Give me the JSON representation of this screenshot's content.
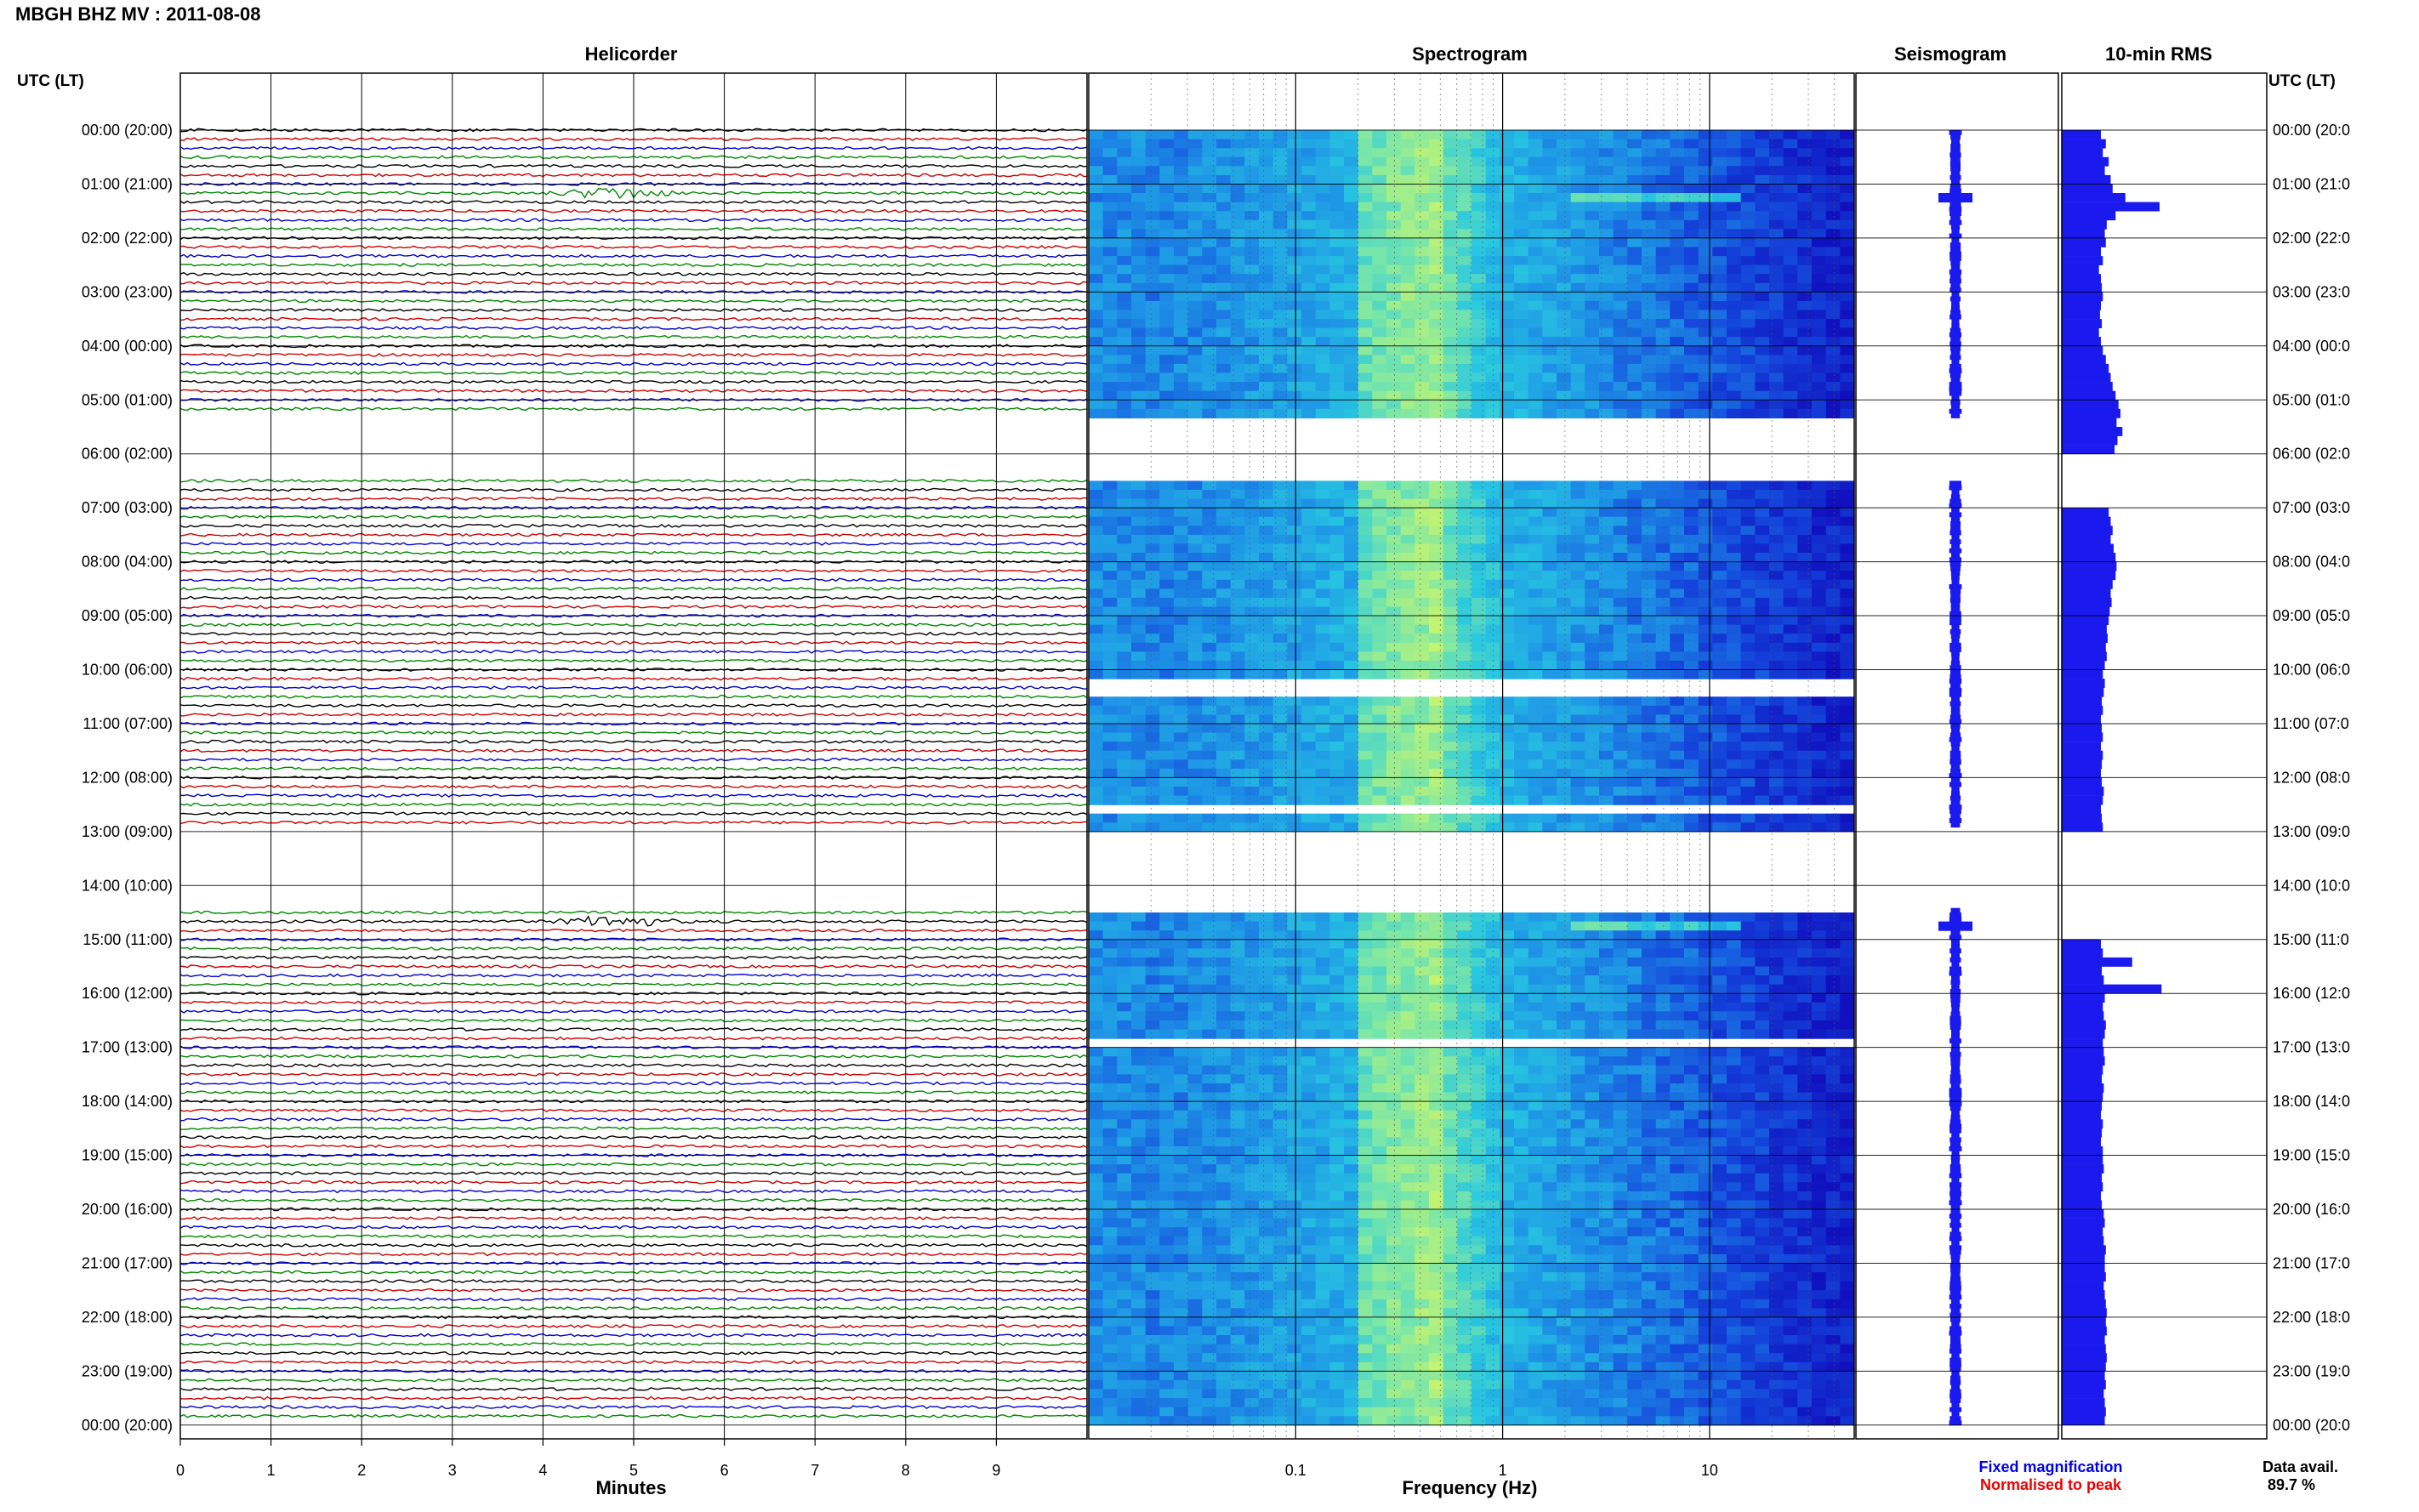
{
  "title": "MBGH BHZ MV : 2011-08-08",
  "panels": {
    "helicorder": "Helicorder",
    "spectrogram": "Spectrogram",
    "seismogram": "Seismogram",
    "rms": "10-min RMS"
  },
  "time_axis_label_left": "UTC (LT)",
  "time_axis_label_right": "UTC (LT)",
  "hour_labels": [
    "00:00 (20:00)",
    "01:00 (21:00)",
    "02:00 (22:00)",
    "03:00 (23:00)",
    "04:00 (00:00)",
    "05:00 (01:00)",
    "06:00 (02:00)",
    "07:00 (03:00)",
    "08:00 (04:00)",
    "09:00 (05:00)",
    "10:00 (06:00)",
    "11:00 (07:00)",
    "12:00 (08:00)",
    "13:00 (09:00)",
    "14:00 (10:00)",
    "15:00 (11:00)",
    "16:00 (12:00)",
    "17:00 (13:00)",
    "18:00 (14:00)",
    "19:00 (15:00)",
    "20:00 (16:00)",
    "21:00 (17:00)",
    "22:00 (18:00)",
    "23:00 (19:00)",
    "00:00 (20:00)"
  ],
  "hour_labels_right": [
    "00:00 (20:0",
    "01:00 (21:0",
    "02:00 (22:0",
    "03:00 (23:0",
    "04:00 (00:0",
    "05:00 (01:0",
    "06:00 (02:0",
    "07:00 (03:0",
    "08:00 (04:0",
    "09:00 (05:0",
    "10:00 (06:0",
    "11:00 (07:0",
    "12:00 (08:0",
    "13:00 (09:0",
    "14:00 (10:0",
    "15:00 (11:0",
    "16:00 (12:0",
    "17:00 (13:0",
    "18:00 (14:0",
    "19:00 (15:0",
    "20:00 (16:0",
    "21:00 (17:0",
    "22:00 (18:0",
    "23:00 (19:0",
    "00:00 (20:0"
  ],
  "minutes_axis": {
    "label": "Minutes",
    "ticks": [
      "0",
      "1",
      "2",
      "3",
      "4",
      "5",
      "6",
      "7",
      "8",
      "9"
    ],
    "range": [
      0,
      10
    ]
  },
  "frequency_axis": {
    "label": "Frequency (Hz)",
    "ticks": [
      "0.1",
      "1",
      "10"
    ],
    "scale": "log",
    "range": [
      0.01,
      50
    ]
  },
  "legend": {
    "fixed": "Fixed magnification",
    "normalised": "Normalised to peak",
    "fixed_color": "#0000ee",
    "normalised_color": "#ee0000"
  },
  "data_avail_label": "Data avail.",
  "data_avail_value": "89.7 %",
  "colors": {
    "trace_cycle": [
      "#000000",
      "#cc0000",
      "#0000cc",
      "#008800"
    ],
    "spectrogram_low": "#1010c0",
    "spectrogram_mid": "#20c0e0",
    "spectrogram_high": "#c0f060",
    "rms_bar": "#1a1aee",
    "seismogram": "#1a1aee"
  },
  "chart_data": {
    "type": "heatmap",
    "title": "MBGH BHZ MV : 2011-08-08",
    "data_gaps_utc_hours": [
      [
        5.3,
        6.5
      ],
      [
        12.9,
        14.4
      ]
    ],
    "spectrogram_gaps_utc_hours": [
      [
        5.1,
        5.2
      ],
      [
        10.2,
        10.4
      ],
      [
        12.5,
        12.6
      ],
      [
        16.8,
        16.9
      ]
    ],
    "events": [
      {
        "utc_hour": 1.2,
        "note": "high-frequency event ~5-10 Hz"
      },
      {
        "utc_hour": 14.7,
        "note": "large event near 5 minutes"
      }
    ],
    "rms_10min": {
      "hour_start": 0,
      "values": [
        0.4,
        0.45,
        0.42,
        0.48,
        0.44,
        0.5,
        0.52,
        0.65,
        1.0,
        0.55,
        0.46,
        0.44,
        0.45,
        0.4,
        0.42,
        0.38,
        0.4,
        0.41,
        0.42,
        0.4,
        0.39,
        0.41,
        0.38,
        0.4,
        0.42,
        0.45,
        0.48,
        0.5,
        0.52,
        0.55,
        0.58,
        0.6,
        0.56,
        0.62,
        0.57,
        0.54,
        null,
        null,
        null,
        null,
        null,
        null,
        0.48,
        0.5,
        0.52,
        0.5,
        0.53,
        0.55,
        0.56,
        0.55,
        0.52,
        0.5,
        0.51,
        0.49,
        0.48,
        0.46,
        0.47,
        0.45,
        0.46,
        0.44,
        0.42,
        0.44,
        0.43,
        0.41,
        0.42,
        0.4,
        0.41,
        0.42,
        0.4,
        0.42,
        0.41,
        0.4,
        0.41,
        0.43,
        0.42,
        0.4,
        0.41,
        0.42,
        null,
        null,
        null,
        null,
        null,
        null,
        null,
        null,
        null,
        null,
        null,
        null,
        0.4,
        0.42,
        0.72,
        0.41,
        0.43,
        1.02,
        0.44,
        0.42,
        0.43,
        0.45,
        0.44,
        0.42,
        0.43,
        0.44,
        0.42,
        0.41,
        0.43,
        0.42,
        0.41,
        0.4,
        0.42,
        0.41,
        0.4,
        0.42,
        0.42,
        0.43,
        0.41,
        0.42,
        0.4,
        0.41,
        0.43,
        0.44,
        0.42,
        0.43,
        0.45,
        0.44,
        0.44,
        0.45,
        0.43,
        0.44,
        0.45,
        0.46,
        0.45,
        0.46,
        0.44,
        0.45,
        0.46,
        0.45,
        0.44,
        0.45,
        0.43,
        0.44,
        0.45,
        0.44
      ]
    }
  }
}
